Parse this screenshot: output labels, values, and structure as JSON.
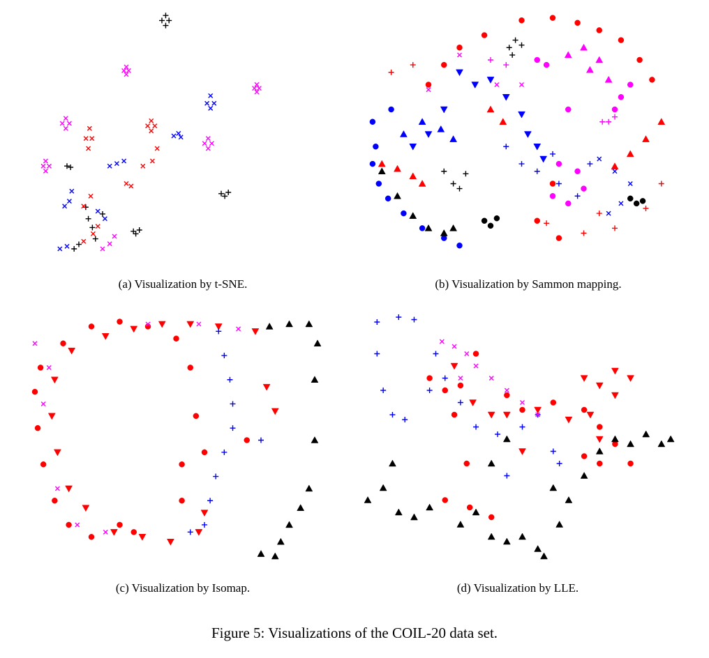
{
  "figure_caption": "Figure 5: Visualizations of the COIL-20 data set.",
  "chart_data": [
    {
      "type": "scatter",
      "caption": "(a)  Visualization by t-SNE.",
      "xlim": [
        0,
        100
      ],
      "ylim": [
        0,
        100
      ],
      "series": [
        {
          "color": "#000000",
          "marker": "plus",
          "x": [
            55,
            58,
            56.6,
            56.6,
            15,
            16.5,
            80,
            83,
            81.5,
            43,
            45.5,
            44,
            22.9,
            25.7,
            20,
            18,
            27,
            30,
            24
          ],
          "y": [
            96,
            96,
            94,
            98,
            38,
            37.5,
            27,
            27.5,
            26,
            12,
            12.5,
            11,
            21.6,
            13.5,
            6.8,
            5,
            9,
            18.9,
            17
          ]
        },
        {
          "color": "#ff00ff",
          "marker": "x",
          "x": [
            39,
            41,
            40,
            40,
            94,
            96,
            95,
            95,
            13,
            16,
            14.5,
            14.5,
            73,
            76,
            74.5,
            74.5,
            5,
            7.5,
            6,
            6,
            30,
            33,
            35
          ],
          "y": [
            76,
            76,
            77.5,
            74.5,
            69,
            69,
            70.5,
            67.5,
            55,
            55,
            57,
            53,
            47,
            47,
            49,
            45,
            38,
            38,
            40,
            36,
            5,
            7,
            10
          ]
        },
        {
          "color": "#ff0000",
          "marker": "x",
          "x": [
            49,
            52,
            50.5,
            50.5,
            23,
            25.5,
            24.5,
            24,
            53,
            47,
            51,
            40,
            42,
            25,
            22,
            26,
            22,
            28
          ],
          "y": [
            54,
            54,
            56,
            52,
            49,
            49,
            53,
            45,
            45,
            38,
            40,
            31,
            30,
            26,
            22,
            11,
            8,
            14
          ]
        },
        {
          "color": "#0000ff",
          "marker": "x",
          "x": [
            74,
            77,
            75.5,
            75.5,
            60,
            62,
            63,
            33,
            36,
            39,
            16,
            14,
            17,
            28,
            31,
            12,
            15
          ],
          "y": [
            63,
            63,
            66,
            61,
            50,
            51,
            49.5,
            38,
            39,
            40,
            24,
            22,
            28,
            20,
            17,
            5,
            6
          ]
        }
      ]
    },
    {
      "type": "scatter",
      "caption": "(b)  Visualization by Sammon mapping.",
      "xlim": [
        0,
        100
      ],
      "ylim": [
        0,
        100
      ],
      "series": [
        {
          "color": "#ff0000",
          "marker": "circle",
          "x": [
            20,
            25,
            30,
            38,
            50,
            60,
            68,
            75,
            82,
            88,
            92,
            60,
            55,
            62
          ],
          "y": [
            70,
            78,
            85,
            90,
            96,
            97,
            95,
            92,
            88,
            80,
            72,
            30,
            15,
            8
          ]
        },
        {
          "color": "#ff0000",
          "marker": "triangle-up",
          "x": [
            95,
            90,
            85,
            80,
            5,
            10,
            15,
            18,
            40,
            44
          ],
          "y": [
            55,
            48,
            42,
            37,
            38,
            36,
            33,
            30,
            60,
            55
          ]
        },
        {
          "color": "#ff0000",
          "marker": "plus",
          "x": [
            8,
            15,
            95,
            90,
            80,
            70,
            58,
            75
          ],
          "y": [
            75,
            78,
            30,
            20,
            12,
            10,
            14,
            18
          ]
        },
        {
          "color": "#0000ff",
          "marker": "circle",
          "x": [
            8,
            3,
            2,
            4,
            7,
            12,
            18,
            25,
            30,
            2
          ],
          "y": [
            60,
            45,
            38,
            30,
            24,
            18,
            12,
            8,
            5,
            55
          ]
        },
        {
          "color": "#0000ff",
          "marker": "triangle-down",
          "x": [
            30,
            35,
            45,
            50,
            52,
            55,
            57,
            25,
            20,
            15,
            40
          ],
          "y": [
            75,
            70,
            65,
            58,
            50,
            45,
            40,
            60,
            50,
            45,
            72
          ]
        },
        {
          "color": "#0000ff",
          "marker": "triangle-up",
          "x": [
            12,
            18,
            24,
            28
          ],
          "y": [
            50,
            55,
            52,
            48
          ]
        },
        {
          "color": "#0000ff",
          "marker": "plus",
          "x": [
            45,
            50,
            55,
            60,
            62,
            68,
            72
          ],
          "y": [
            45,
            38,
            35,
            42,
            30,
            25,
            38
          ]
        },
        {
          "color": "#0000ff",
          "marker": "x",
          "x": [
            75,
            80,
            85,
            82,
            78
          ],
          "y": [
            40,
            35,
            30,
            22,
            18
          ]
        },
        {
          "color": "#000000",
          "marker": "plus",
          "x": [
            46,
            48,
            50,
            47,
            25,
            28,
            30,
            32
          ],
          "y": [
            85,
            88,
            86,
            82,
            35,
            30,
            28,
            34
          ]
        },
        {
          "color": "#000000",
          "marker": "triangle-up",
          "x": [
            5,
            10,
            15,
            20,
            25,
            28
          ],
          "y": [
            35,
            25,
            17,
            12,
            10,
            12
          ]
        },
        {
          "color": "#000000",
          "marker": "circle",
          "x": [
            38,
            40,
            42,
            85,
            87,
            89
          ],
          "y": [
            15,
            13,
            16,
            24,
            22,
            23
          ]
        },
        {
          "color": "#ff00ff",
          "marker": "circle",
          "x": [
            60,
            65,
            70,
            68,
            62,
            55,
            58,
            80,
            82,
            85,
            65
          ],
          "y": [
            25,
            22,
            28,
            35,
            38,
            80,
            78,
            60,
            65,
            70,
            60
          ]
        },
        {
          "color": "#ff00ff",
          "marker": "triangle-up",
          "x": [
            65,
            70,
            75,
            72,
            78
          ],
          "y": [
            82,
            85,
            80,
            76,
            72
          ]
        },
        {
          "color": "#ff00ff",
          "marker": "plus",
          "x": [
            78,
            80,
            76,
            40,
            45
          ],
          "y": [
            55,
            57,
            55,
            80,
            78
          ]
        },
        {
          "color": "#ff00ff",
          "marker": "x",
          "x": [
            20,
            30,
            42,
            50
          ],
          "y": [
            68,
            82,
            70,
            70
          ]
        }
      ]
    },
    {
      "type": "scatter",
      "caption": "(c)  Visualization by Isomap.",
      "xlim": [
        0,
        100
      ],
      "ylim": [
        0,
        100
      ],
      "series": [
        {
          "color": "#ff0000",
          "marker": "circle",
          "x": [
            2,
            0,
            1,
            3,
            7,
            12,
            20,
            30,
            35,
            10,
            20,
            30,
            40,
            50,
            55,
            57,
            60,
            52,
            52,
            75
          ],
          "y": [
            80,
            70,
            55,
            40,
            25,
            15,
            10,
            15,
            12,
            90,
            97,
            99,
            97,
            92,
            80,
            60,
            45,
            25,
            40,
            50
          ]
        },
        {
          "color": "#ff0000",
          "marker": "triangle-down",
          "x": [
            13,
            7,
            6,
            8,
            12,
            18,
            28,
            38,
            48,
            25,
            35,
            45,
            55,
            65,
            78,
            82,
            85,
            60,
            58
          ],
          "y": [
            87,
            75,
            60,
            45,
            30,
            22,
            12,
            10,
            8,
            93,
            96,
            98,
            98,
            97,
            95,
            72,
            62,
            20,
            12
          ]
        },
        {
          "color": "#0000ff",
          "marker": "plus",
          "x": [
            65,
            67,
            69,
            70,
            70,
            67,
            64,
            62,
            60,
            55,
            80
          ],
          "y": [
            95,
            85,
            75,
            65,
            55,
            45,
            35,
            25,
            15,
            12,
            50
          ]
        },
        {
          "color": "#ff00ff",
          "marker": "x",
          "x": [
            0,
            5,
            3,
            8,
            15,
            25,
            40,
            58,
            72
          ],
          "y": [
            90,
            80,
            65,
            30,
            15,
            12,
            98,
            98,
            96
          ]
        },
        {
          "color": "#000000",
          "marker": "triangle-up",
          "x": [
            83,
            90,
            97,
            100,
            99,
            99,
            97,
            94,
            90,
            87,
            85,
            80
          ],
          "y": [
            97,
            98,
            98,
            90,
            75,
            50,
            30,
            22,
            15,
            8,
            2,
            3
          ]
        }
      ]
    },
    {
      "type": "scatter",
      "caption": "(d)  Visualization by LLE.",
      "xlim": [
        0,
        100
      ],
      "ylim": [
        0,
        100
      ],
      "series": [
        {
          "color": "#0000ff",
          "marker": "plus",
          "x": [
            3,
            10,
            15,
            3,
            5,
            8,
            12,
            20,
            22,
            25,
            30,
            35,
            42,
            50,
            55,
            60,
            62,
            45
          ],
          "y": [
            98,
            100,
            99,
            85,
            70,
            60,
            58,
            70,
            85,
            75,
            65,
            55,
            52,
            55,
            60,
            45,
            40,
            35
          ]
        },
        {
          "color": "#ff00ff",
          "marker": "x",
          "x": [
            24,
            28,
            32,
            35,
            40,
            30,
            45,
            50,
            55
          ],
          "y": [
            90,
            88,
            85,
            80,
            75,
            75,
            70,
            65,
            60
          ]
        },
        {
          "color": "#ff0000",
          "marker": "circle",
          "x": [
            20,
            25,
            30,
            28,
            35,
            45,
            50,
            60,
            70,
            75,
            80,
            85,
            75,
            70,
            32,
            25,
            33,
            40
          ],
          "y": [
            75,
            70,
            72,
            60,
            85,
            68,
            62,
            65,
            62,
            55,
            48,
            40,
            40,
            43,
            40,
            25,
            22,
            18
          ]
        },
        {
          "color": "#ff0000",
          "marker": "triangle-down",
          "x": [
            28,
            34,
            40,
            45,
            55,
            65,
            72,
            70,
            75,
            80,
            85,
            80,
            75,
            50
          ],
          "y": [
            80,
            65,
            60,
            60,
            62,
            58,
            60,
            75,
            72,
            78,
            75,
            68,
            50,
            45
          ]
        },
        {
          "color": "#000000",
          "marker": "triangle-up",
          "x": [
            0,
            5,
            10,
            15,
            20,
            8,
            30,
            35,
            40,
            45,
            50,
            55,
            57,
            60,
            65,
            70,
            75,
            80,
            85,
            90,
            95,
            98,
            45,
            40,
            62
          ],
          "y": [
            25,
            30,
            20,
            18,
            22,
            40,
            15,
            20,
            10,
            8,
            10,
            5,
            2,
            30,
            25,
            35,
            45,
            50,
            48,
            52,
            48,
            50,
            50,
            40,
            15
          ]
        }
      ]
    }
  ]
}
